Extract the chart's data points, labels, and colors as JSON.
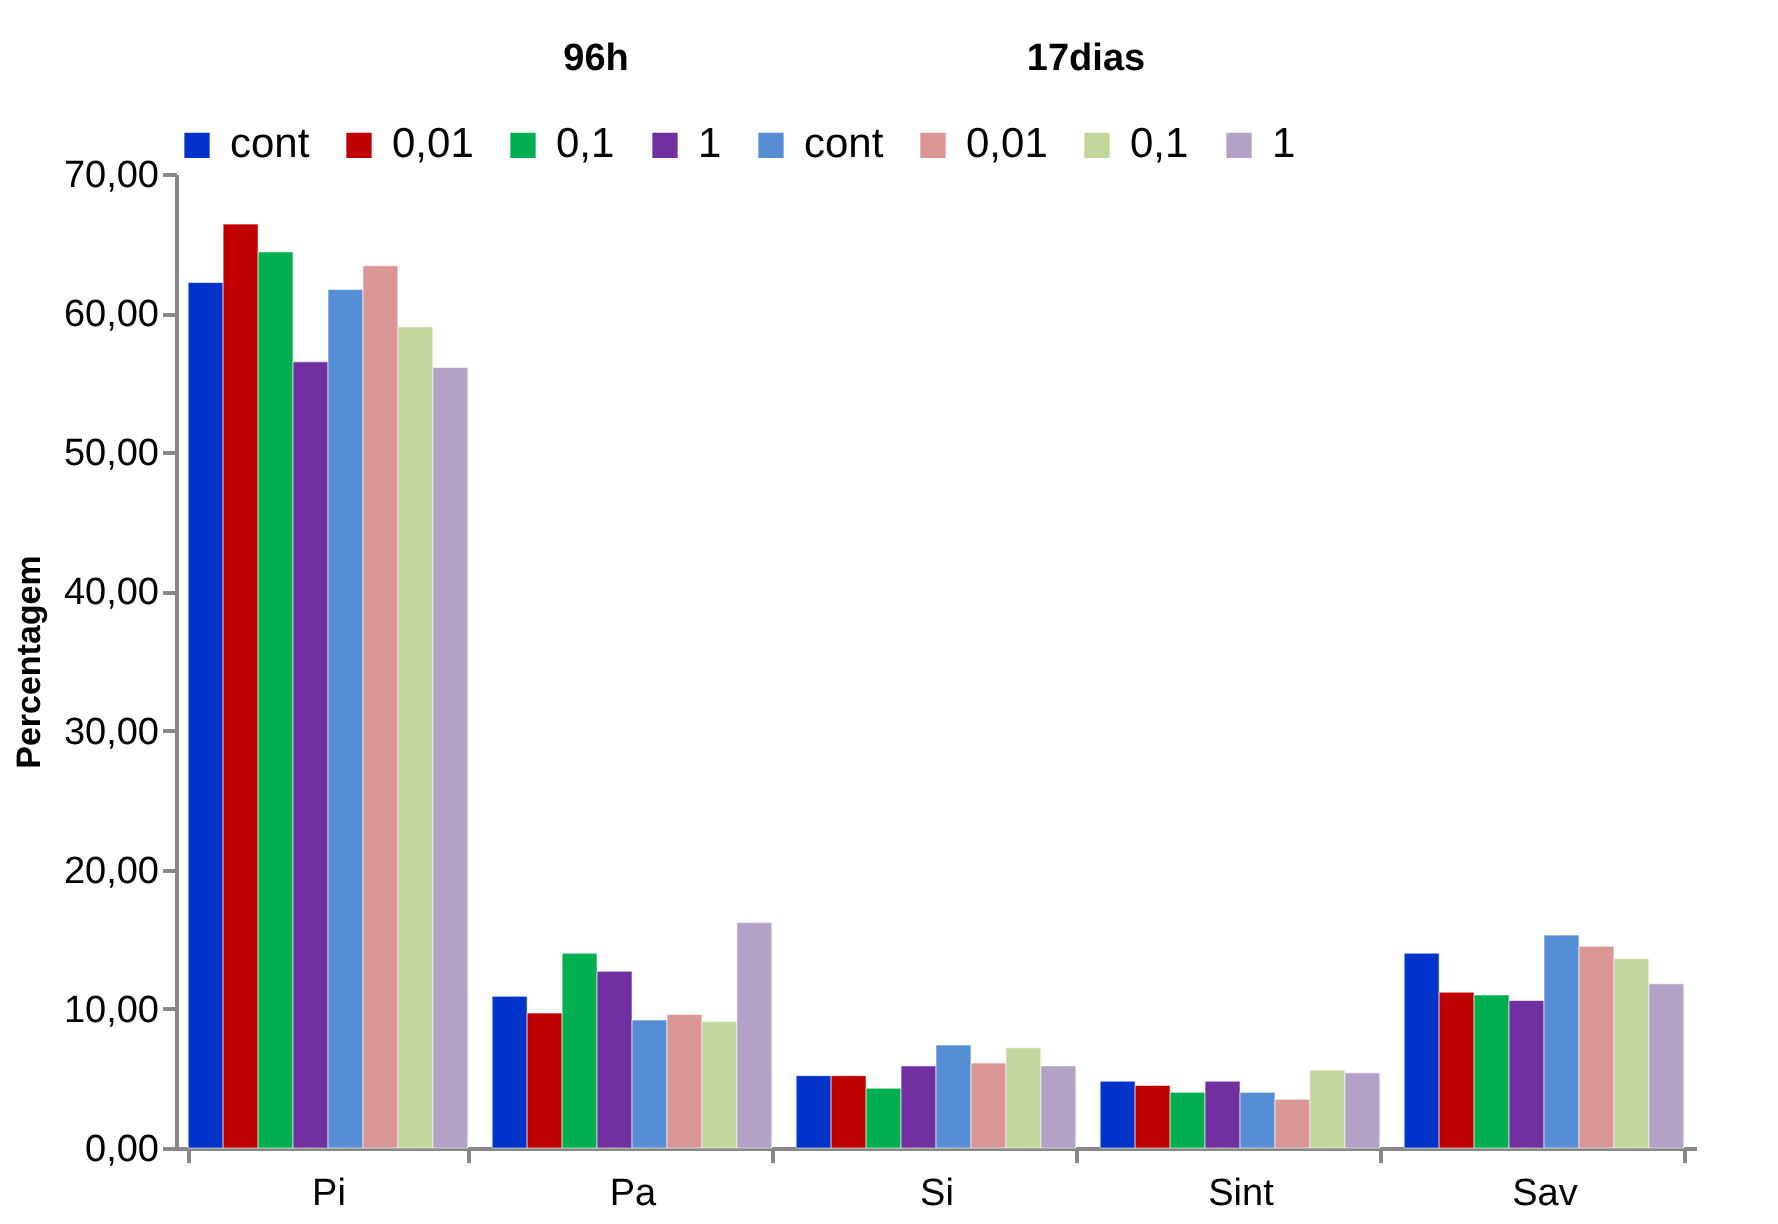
{
  "chart_data": {
    "type": "bar",
    "ylabel": "Percentagem",
    "categories": [
      "Pi",
      "Pa",
      "Si",
      "Sint",
      "Sav"
    ],
    "series": [
      {
        "name": "cont",
        "color": "#0033cc",
        "values": [
          62.2,
          10.9,
          5.2,
          4.8,
          14.0
        ]
      },
      {
        "name": "0,01",
        "color": "#c00000",
        "values": [
          66.4,
          9.7,
          5.2,
          4.5,
          11.2
        ]
      },
      {
        "name": "0,1",
        "color": "#00b050",
        "values": [
          64.4,
          14.0,
          4.3,
          4.0,
          11.0
        ]
      },
      {
        "name": "1",
        "color": "#7030a0",
        "values": [
          56.5,
          12.7,
          5.9,
          4.8,
          10.6
        ]
      },
      {
        "name": "cont",
        "color": "#558ed5",
        "values": [
          61.7,
          9.2,
          7.4,
          4.0,
          15.3
        ]
      },
      {
        "name": "0,01",
        "color": "#d99694",
        "values": [
          63.4,
          9.6,
          6.1,
          3.5,
          14.5
        ]
      },
      {
        "name": "0,1",
        "color": "#c3d69b",
        "values": [
          59.0,
          9.1,
          7.2,
          5.6,
          13.6
        ]
      },
      {
        "name": "1",
        "color": "#b3a2c7",
        "values": [
          56.1,
          16.2,
          5.9,
          5.4,
          11.8
        ]
      }
    ],
    "annotations": [
      "96h",
      "17dias"
    ],
    "ylim": [
      0,
      70
    ],
    "yticks": [
      {
        "value": 0,
        "label": "0,00"
      },
      {
        "value": 10,
        "label": "10,00"
      },
      {
        "value": 20,
        "label": "20,00"
      },
      {
        "value": 30,
        "label": "30,00"
      },
      {
        "value": 40,
        "label": "40,00"
      },
      {
        "value": 50,
        "label": "50,00"
      },
      {
        "value": 60,
        "label": "60,00"
      },
      {
        "value": 70,
        "label": "70,00"
      }
    ],
    "grid": false,
    "legend": "top"
  }
}
